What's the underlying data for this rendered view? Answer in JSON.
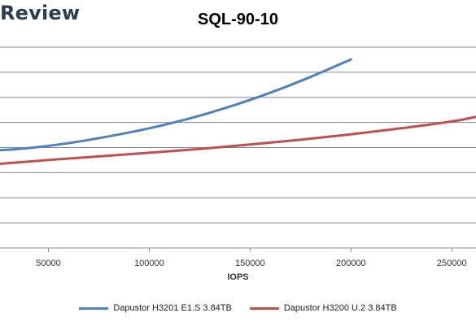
{
  "brand": {
    "name": "Review"
  },
  "chart_data": {
    "type": "line",
    "title": "SQL-90-10",
    "xlabel": "IOPS",
    "ylabel": "",
    "xlim": [
      26000,
      262000
    ],
    "ylim": [
      0,
      1
    ],
    "grid": true,
    "legend_position": "bottom",
    "x_ticks": [
      50000,
      100000,
      150000,
      200000,
      250000
    ],
    "x_tick_labels": [
      "50000",
      "100000",
      "150000",
      "200000",
      "250000"
    ],
    "series": [
      {
        "name": "Dapustor H3201 E1.S 3.84TB",
        "color": "#4f81bd",
        "points": [
          [
            26000,
            0.487
          ],
          [
            40000,
            0.497
          ],
          [
            60000,
            0.522
          ],
          [
            80000,
            0.556
          ],
          [
            100000,
            0.596
          ],
          [
            120000,
            0.645
          ],
          [
            140000,
            0.704
          ],
          [
            160000,
            0.773
          ],
          [
            180000,
            0.852
          ],
          [
            200000,
            0.939
          ]
        ]
      },
      {
        "name": "Dapustor H3200 U.2 3.84TB",
        "color": "#c0504d",
        "points": [
          [
            26000,
            0.419
          ],
          [
            50000,
            0.438
          ],
          [
            75000,
            0.456
          ],
          [
            100000,
            0.474
          ],
          [
            125000,
            0.493
          ],
          [
            150000,
            0.515
          ],
          [
            175000,
            0.539
          ],
          [
            200000,
            0.566
          ],
          [
            225000,
            0.596
          ],
          [
            250000,
            0.63
          ],
          [
            262000,
            0.653
          ]
        ]
      }
    ]
  }
}
